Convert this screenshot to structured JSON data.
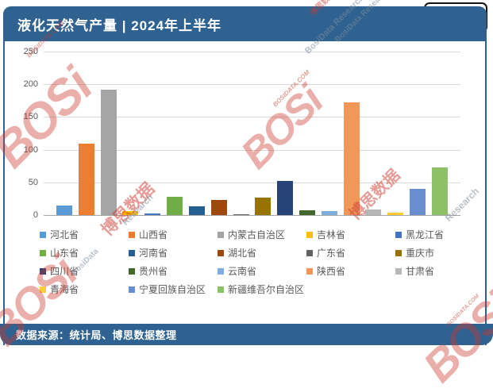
{
  "page": {
    "header": {
      "title": "液化天然气产量 | 2024年上半年"
    },
    "logo": {
      "name": "BOSi",
      "domain": "BOSIDATA.COM"
    },
    "footer": {
      "source_text": "数据来源：统计局、博思数据整理"
    }
  },
  "chart_data": {
    "type": "bar",
    "title": "液化天然气产量 | 2024年上半年",
    "categories": [
      "河北省",
      "山西省",
      "内蒙古自治区",
      "吉林省",
      "黑龙江省",
      "山东省",
      "河南省",
      "湖北省",
      "广东省",
      "重庆市",
      "四川省",
      "贵州省",
      "云南省",
      "陕西省",
      "甘肃省",
      "青海省",
      "宁夏回族自治区",
      "新疆维吾尔自治区"
    ],
    "values": [
      15,
      109,
      192,
      6,
      2,
      28,
      13,
      23,
      1.5,
      27,
      52,
      7,
      6,
      172,
      9,
      4,
      40,
      73
    ],
    "colors": [
      "#5B9BD5",
      "#ED7D31",
      "#A5A5A5",
      "#FFC000",
      "#4472C4",
      "#70AD47",
      "#255E91",
      "#9E480E",
      "#636363",
      "#997300",
      "#264478",
      "#43682B",
      "#7CAFDD",
      "#F1975A",
      "#B7B7B7",
      "#FFCD33",
      "#698ED0",
      "#8CC168"
    ],
    "xlabel": "",
    "ylabel": "",
    "ylim": [
      0,
      250
    ],
    "y_ticks": [
      0,
      50,
      100,
      150,
      200,
      250
    ],
    "grid": true,
    "legend_position": "bottom"
  },
  "watermarks": [
    {
      "text": "BOSi",
      "cls": "wm1 red-big"
    },
    {
      "text": "BOSIDATA.COM",
      "cls": "wm1b red-mid"
    },
    {
      "text": "BosiData Research",
      "cls": "wm2 gray"
    },
    {
      "text": "BOSi",
      "cls": "wm3 red-big"
    },
    {
      "text": "BOSIDATA.COM",
      "cls": "wm3b red-mid"
    },
    {
      "text": "BosiData Research",
      "cls": "wm3c gray"
    },
    {
      "text": "博思数据",
      "cls": "wm4 red-mid"
    },
    {
      "text": "Research",
      "cls": "wm4b gray"
    },
    {
      "text": "博思数据",
      "cls": "wm5 red-mid"
    },
    {
      "text": "Research",
      "cls": "wm5b gray"
    },
    {
      "text": "BOSi",
      "cls": "wm6 red-big"
    },
    {
      "text": "BosiData",
      "cls": "wm6b gray"
    },
    {
      "text": "BOSi",
      "cls": "wm7 red-big"
    },
    {
      "text": "BOSIDATA.COM",
      "cls": "wm7b red-mid"
    },
    {
      "text": "博思数据",
      "cls": "wm8 red-mid"
    }
  ],
  "theme": {
    "accent_blue": "#2F6291",
    "grid_color": "#D9D9D9",
    "axis_color": "#A6A6A6",
    "label_gray": "#595959"
  }
}
